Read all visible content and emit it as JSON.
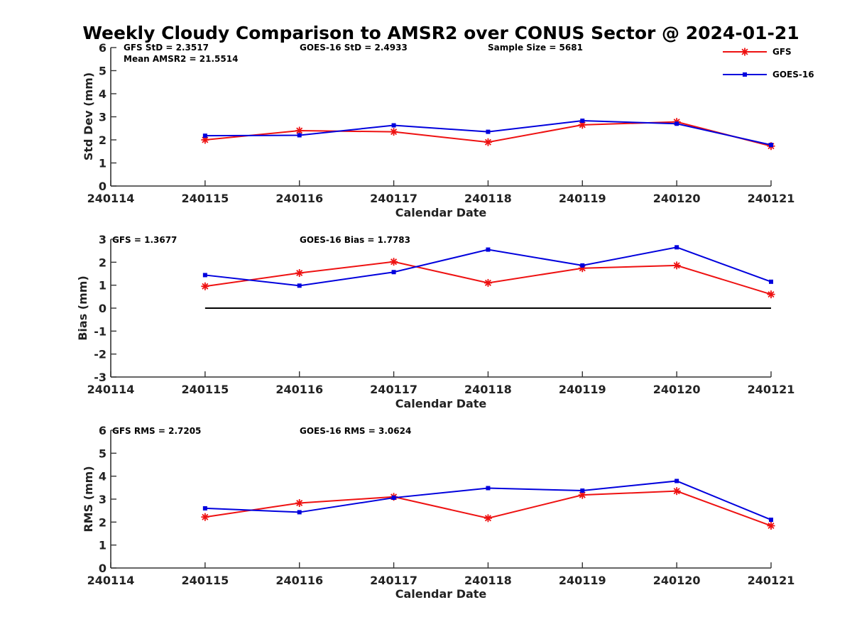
{
  "chart_data": {
    "type": "line",
    "title": "Weekly Cloudy Comparison to AMSR2 over CONUS Sector @ 2024-01-21",
    "xlabel": "Calendar Date",
    "x_ticks": [
      "240114",
      "240115",
      "240116",
      "240117",
      "240118",
      "240119",
      "240120",
      "240121"
    ],
    "x": [
      "240115",
      "240116",
      "240117",
      "240118",
      "240119",
      "240120",
      "240121"
    ],
    "legend": {
      "placement": "top-right",
      "entries": [
        {
          "name": "GFS",
          "color": "#ee1111",
          "marker": "asterisk"
        },
        {
          "name": "GOES-16",
          "color": "#0000dd",
          "marker": "square"
        }
      ]
    },
    "panels": [
      {
        "ylabel": "Std Dev (mm)",
        "ylim": [
          0,
          6
        ],
        "y_ticks": [
          "0",
          "1",
          "2",
          "3",
          "4",
          "5",
          "6"
        ],
        "annotations": [
          "GFS StD = 2.3517",
          "Mean AMSR2 = 21.5514",
          "GOES-16 StD = 2.4933",
          "Sample Size = 5681"
        ],
        "series": [
          {
            "name": "GFS",
            "values": [
              2.0,
              2.4,
              2.35,
              1.9,
              2.65,
              2.78,
              1.73
            ]
          },
          {
            "name": "GOES-16",
            "values": [
              2.18,
              2.2,
              2.63,
              2.35,
              2.83,
              2.7,
              1.78
            ]
          }
        ]
      },
      {
        "ylabel": "Bias (mm)",
        "ylim": [
          -3,
          3
        ],
        "y_ticks": [
          "-3",
          "-2",
          "-1",
          "0",
          "1",
          "2",
          "3"
        ],
        "zero_line": true,
        "annotations": [
          "GFS = 1.3677",
          "GOES-16 Bias  = 1.7783"
        ],
        "series": [
          {
            "name": "GFS",
            "values": [
              0.95,
              1.53,
              2.02,
              1.1,
              1.74,
              1.86,
              0.6
            ]
          },
          {
            "name": "GOES-16",
            "values": [
              1.44,
              0.98,
              1.57,
              2.55,
              1.86,
              2.65,
              1.15
            ]
          }
        ]
      },
      {
        "ylabel": "RMS (mm)",
        "ylim": [
          0,
          6
        ],
        "y_ticks": [
          "0",
          "1",
          "2",
          "3",
          "4",
          "5",
          "6"
        ],
        "annotations": [
          "GFS RMS = 2.7205",
          "GOES-16 RMS = 3.0624"
        ],
        "series": [
          {
            "name": "GFS",
            "values": [
              2.22,
              2.83,
              3.1,
              2.17,
              3.18,
              3.35,
              1.84
            ]
          },
          {
            "name": "GOES-16",
            "values": [
              2.6,
              2.43,
              3.06,
              3.48,
              3.37,
              3.79,
              2.1
            ]
          }
        ]
      }
    ]
  }
}
